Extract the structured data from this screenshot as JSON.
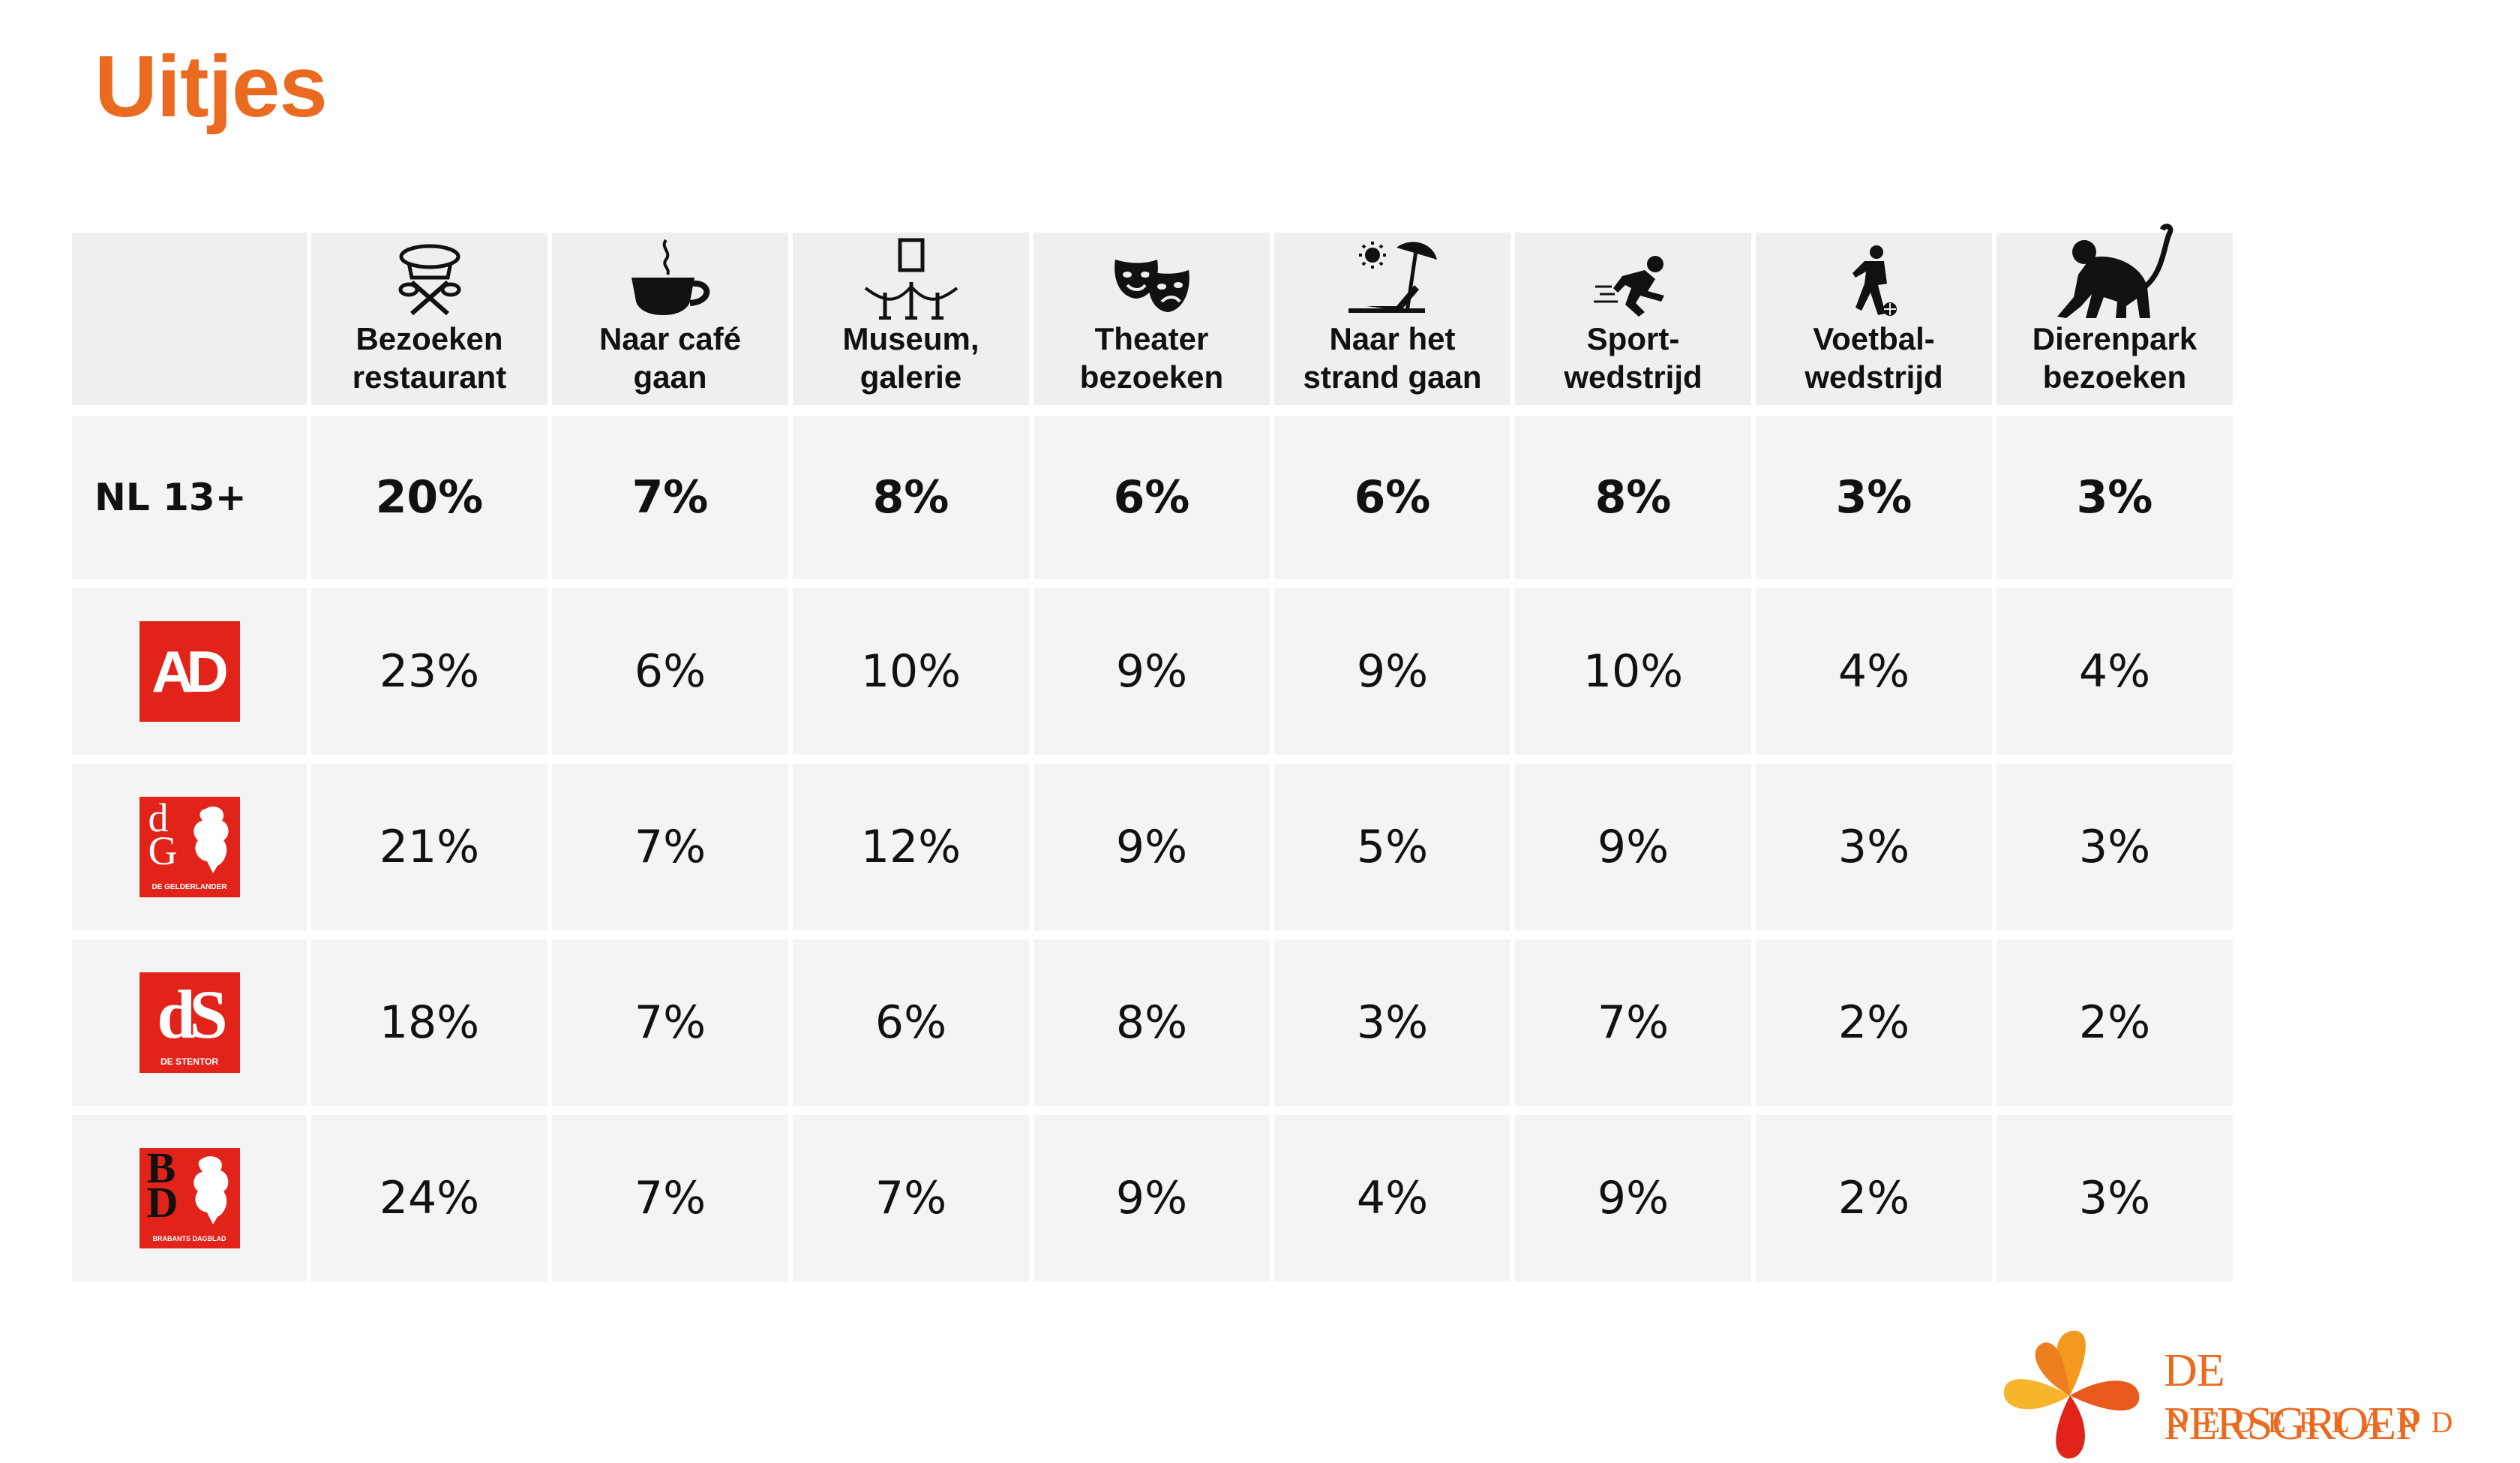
{
  "slide": {
    "title": "Uitjes"
  },
  "columns": [
    {
      "label": "Bezoeken\nrestaurant",
      "icon": "chef-hat-utensils-icon"
    },
    {
      "label": "Naar café\ngaan",
      "icon": "coffee-cup-icon"
    },
    {
      "label": "Museum,\ngalerie",
      "icon": "museum-exhibit-icon"
    },
    {
      "label": "Theater\nbezoeken",
      "icon": "theater-masks-icon"
    },
    {
      "label": "Naar het\nstrand gaan",
      "icon": "beach-chair-umbrella-icon"
    },
    {
      "label": "Sport-\nwedstrijd",
      "icon": "runner-icon"
    },
    {
      "label": "Voetbal-\nwedstrijd",
      "icon": "football-player-icon"
    },
    {
      "label": "Dierenpark\nbezoeken",
      "icon": "monkey-icon"
    }
  ],
  "rows": [
    {
      "label": "NL 13+",
      "values": [
        "20%",
        "7%",
        "8%",
        "6%",
        "6%",
        "8%",
        "3%",
        "3%"
      ]
    },
    {
      "logo": "AD",
      "logo_icon": "ad-logo-icon",
      "values": [
        "23%",
        "6%",
        "10%",
        "9%",
        "9%",
        "10%",
        "4%",
        "4%"
      ]
    },
    {
      "logo": "dG",
      "logo_caption": "DE GELDERLANDER",
      "logo_icon": "gelderlander-logo-icon",
      "values": [
        "21%",
        "7%",
        "12%",
        "9%",
        "5%",
        "9%",
        "3%",
        "3%"
      ]
    },
    {
      "logo": "dS",
      "logo_caption": "DE STENTOR",
      "logo_icon": "stentor-logo-icon",
      "values": [
        "18%",
        "7%",
        "6%",
        "8%",
        "3%",
        "7%",
        "2%",
        "2%"
      ]
    },
    {
      "logo": "BD",
      "logo_caption": "BRABANTS DAGBLAD",
      "logo_icon": "brabants-dagblad-logo-icon",
      "values": [
        "24%",
        "7%",
        "7%",
        "9%",
        "4%",
        "9%",
        "2%",
        "3%"
      ]
    }
  ],
  "brand": {
    "name": "DE PERSGROEP",
    "sub": "NEDERLAND",
    "icon": "flower-logo-icon"
  },
  "colors": {
    "accent": "#EA6B1F",
    "logo_red": "#E2231A",
    "header_bg": "#f0efed",
    "cell_bg": "#f4f4f4"
  }
}
